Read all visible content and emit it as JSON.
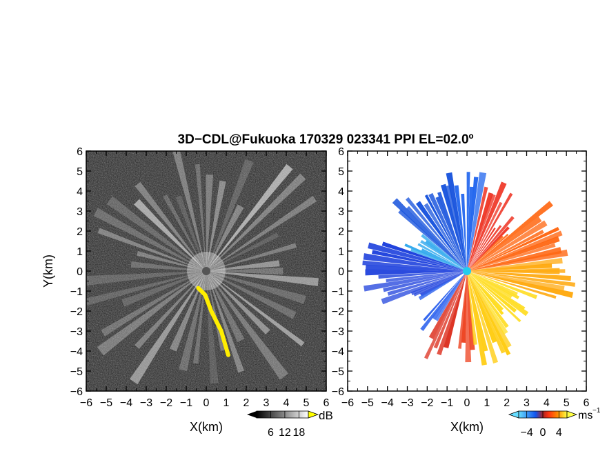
{
  "figure": {
    "title": "3D−CDL@Fukuoka 170329 023341 PPI EL=02.0º"
  },
  "chart_data": [
    {
      "type": "heatmap",
      "quantity": "reflectivity",
      "xlabel": "X(km)",
      "ylabel": "Y(km)",
      "xlim": [
        -6,
        6
      ],
      "ylim": [
        -6,
        6
      ],
      "xticks": [
        -6,
        -5,
        -4,
        -3,
        -2,
        -1,
        0,
        1,
        2,
        3,
        4,
        5,
        6
      ],
      "xtick_labels": [
        "−6",
        "−5",
        "−4",
        "−3",
        "−2",
        "−1",
        "0",
        "1",
        "2",
        "3",
        "4",
        "5",
        "6"
      ],
      "yticks": [
        6,
        5,
        4,
        3,
        2,
        1,
        0,
        -1,
        -2,
        -3,
        -4,
        -5,
        -6
      ],
      "ytick_labels": [
        "6",
        "5",
        "4",
        "3",
        "2",
        "1",
        "0",
        "−1",
        "−2",
        "−3",
        "−4",
        "−5",
        "−6"
      ],
      "radar_center": [
        0,
        0
      ],
      "highlight_color": "#ffee00",
      "highlight_path": [
        [
          -0.4,
          -0.85
        ],
        [
          -0.05,
          -1.2
        ],
        [
          0.25,
          -2.0
        ],
        [
          0.75,
          -3.0
        ],
        [
          1.1,
          -4.2
        ]
      ],
      "colorbar": {
        "unit": "dB",
        "tick_values": [
          6,
          12,
          18
        ],
        "tick_labels": [
          "6",
          "12",
          "18"
        ],
        "range": [
          0,
          22
        ],
        "colors": [
          "#000000",
          "#ffffff"
        ]
      }
    },
    {
      "type": "heatmap",
      "quantity": "radial velocity",
      "xlabel": "X(km)",
      "ylabel": "",
      "xlim": [
        -6,
        6
      ],
      "ylim": [
        -6,
        6
      ],
      "xticks": [
        -6,
        -5,
        -4,
        -3,
        -2,
        -1,
        0,
        1,
        2,
        3,
        4,
        5,
        6
      ],
      "xtick_labels": [
        "−6",
        "−5",
        "−4",
        "−3",
        "−2",
        "−1",
        "0",
        "1",
        "2",
        "3",
        "4",
        "5",
        "6"
      ],
      "yticks": [
        6,
        5,
        4,
        3,
        2,
        1,
        0,
        -1,
        -2,
        -3,
        -4,
        -5,
        -6
      ],
      "ytick_labels": [
        "6",
        "5",
        "4",
        "3",
        "2",
        "1",
        "0",
        "−1",
        "−2",
        "−3",
        "−4",
        "−5",
        "−6"
      ],
      "radar_center": [
        0,
        0
      ],
      "center_marker_color": "#22ccee",
      "colorbar": {
        "unit": "ms",
        "unit_exponent": "−1",
        "tick_values": [
          -4,
          0,
          4
        ],
        "tick_labels": [
          "−4",
          "0",
          "4"
        ],
        "range": [
          -6,
          6
        ],
        "colors": [
          "#66ddff",
          "#1155ee",
          "#aa2222",
          "#ff3311",
          "#ff8800",
          "#ffff44"
        ]
      }
    }
  ]
}
